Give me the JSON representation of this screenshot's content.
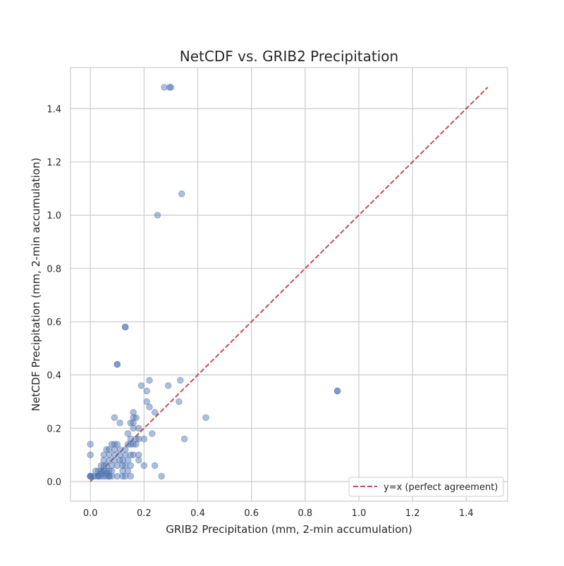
{
  "chart_data": {
    "type": "scatter",
    "title": "NetCDF vs. GRIB2 Precipitation",
    "xlabel": "GRIB2 Precipitation (mm, 2-min accumulation)",
    "ylabel": "NetCDF Precipitation (mm, 2-min accumulation)",
    "xlim": [
      -0.074,
      1.554
    ],
    "ylim": [
      -0.074,
      1.554
    ],
    "xticks": [
      0.0,
      0.2,
      0.4,
      0.6,
      0.8,
      1.0,
      1.2,
      1.4
    ],
    "yticks": [
      0.0,
      0.2,
      0.4,
      0.6,
      0.8,
      1.0,
      1.2,
      1.4
    ],
    "xtick_labels": [
      "0.0",
      "0.2",
      "0.4",
      "0.6",
      "0.8",
      "1.0",
      "1.2",
      "1.4"
    ],
    "ytick_labels": [
      "0.0",
      "0.2",
      "0.4",
      "0.6",
      "0.8",
      "1.0",
      "1.2",
      "1.4"
    ],
    "grid": true,
    "legend_position": "lower-right",
    "colors": {
      "points": "#4c72b0",
      "reference_line": "#c44e52",
      "grid": "#cccccc",
      "spine": "#cccccc"
    },
    "series": [
      {
        "name": "",
        "kind": "scatter",
        "alpha": 0.45,
        "points": [
          [
            0.0,
            0.02
          ],
          [
            0.0,
            0.02
          ],
          [
            0.0,
            0.02
          ],
          [
            0.0,
            0.1
          ],
          [
            0.0,
            0.14
          ],
          [
            0.01,
            0.02
          ],
          [
            0.02,
            0.02
          ],
          [
            0.02,
            0.04
          ],
          [
            0.03,
            0.02
          ],
          [
            0.03,
            0.04
          ],
          [
            0.03,
            0.02
          ],
          [
            0.04,
            0.02
          ],
          [
            0.04,
            0.04
          ],
          [
            0.04,
            0.06
          ],
          [
            0.04,
            0.03
          ],
          [
            0.05,
            0.02
          ],
          [
            0.05,
            0.04
          ],
          [
            0.05,
            0.08
          ],
          [
            0.05,
            0.1
          ],
          [
            0.05,
            0.06
          ],
          [
            0.06,
            0.02
          ],
          [
            0.06,
            0.04
          ],
          [
            0.06,
            0.06
          ],
          [
            0.06,
            0.12
          ],
          [
            0.06,
            0.03
          ],
          [
            0.07,
            0.02
          ],
          [
            0.07,
            0.04
          ],
          [
            0.07,
            0.08
          ],
          [
            0.07,
            0.1
          ],
          [
            0.07,
            0.12
          ],
          [
            0.07,
            0.02
          ],
          [
            0.08,
            0.02
          ],
          [
            0.08,
            0.06
          ],
          [
            0.08,
            0.14
          ],
          [
            0.08,
            0.04
          ],
          [
            0.09,
            0.08
          ],
          [
            0.09,
            0.1
          ],
          [
            0.09,
            0.24
          ],
          [
            0.09,
            0.12
          ],
          [
            0.09,
            0.14
          ],
          [
            0.1,
            0.02
          ],
          [
            0.1,
            0.06
          ],
          [
            0.1,
            0.14
          ],
          [
            0.1,
            0.44
          ],
          [
            0.1,
            0.44
          ],
          [
            0.11,
            0.08
          ],
          [
            0.11,
            0.1
          ],
          [
            0.11,
            0.22
          ],
          [
            0.11,
            0.12
          ],
          [
            0.12,
            0.02
          ],
          [
            0.12,
            0.04
          ],
          [
            0.12,
            0.06
          ],
          [
            0.12,
            0.08
          ],
          [
            0.13,
            0.06
          ],
          [
            0.13,
            0.1
          ],
          [
            0.13,
            0.12
          ],
          [
            0.13,
            0.58
          ],
          [
            0.13,
            0.58
          ],
          [
            0.13,
            0.02
          ],
          [
            0.14,
            0.04
          ],
          [
            0.14,
            0.08
          ],
          [
            0.14,
            0.14
          ],
          [
            0.14,
            0.18
          ],
          [
            0.15,
            0.02
          ],
          [
            0.15,
            0.06
          ],
          [
            0.15,
            0.1
          ],
          [
            0.15,
            0.14
          ],
          [
            0.15,
            0.16
          ],
          [
            0.15,
            0.22
          ],
          [
            0.16,
            0.1
          ],
          [
            0.16,
            0.14
          ],
          [
            0.16,
            0.2
          ],
          [
            0.16,
            0.24
          ],
          [
            0.16,
            0.26
          ],
          [
            0.16,
            0.22
          ],
          [
            0.17,
            0.14
          ],
          [
            0.17,
            0.16
          ],
          [
            0.17,
            0.24
          ],
          [
            0.18,
            0.08
          ],
          [
            0.18,
            0.1
          ],
          [
            0.18,
            0.16
          ],
          [
            0.18,
            0.2
          ],
          [
            0.19,
            0.36
          ],
          [
            0.2,
            0.06
          ],
          [
            0.2,
            0.16
          ],
          [
            0.21,
            0.3
          ],
          [
            0.21,
            0.34
          ],
          [
            0.22,
            0.28
          ],
          [
            0.22,
            0.38
          ],
          [
            0.23,
            0.18
          ],
          [
            0.24,
            0.06
          ],
          [
            0.24,
            0.26
          ],
          [
            0.25,
            1.0
          ],
          [
            0.265,
            0.02
          ],
          [
            0.275,
            1.48
          ],
          [
            0.29,
            0.36
          ],
          [
            0.295,
            1.48
          ],
          [
            0.3,
            1.48
          ],
          [
            0.33,
            0.3
          ],
          [
            0.335,
            0.38
          ],
          [
            0.34,
            1.08
          ],
          [
            0.35,
            0.16
          ],
          [
            0.43,
            0.24
          ],
          [
            0.92,
            0.34
          ],
          [
            0.92,
            0.34
          ]
        ]
      },
      {
        "name": "y=x (perfect agreement)",
        "kind": "line",
        "style": "dashed",
        "points": [
          [
            0.0,
            0.0
          ],
          [
            1.48,
            1.48
          ]
        ]
      }
    ]
  }
}
